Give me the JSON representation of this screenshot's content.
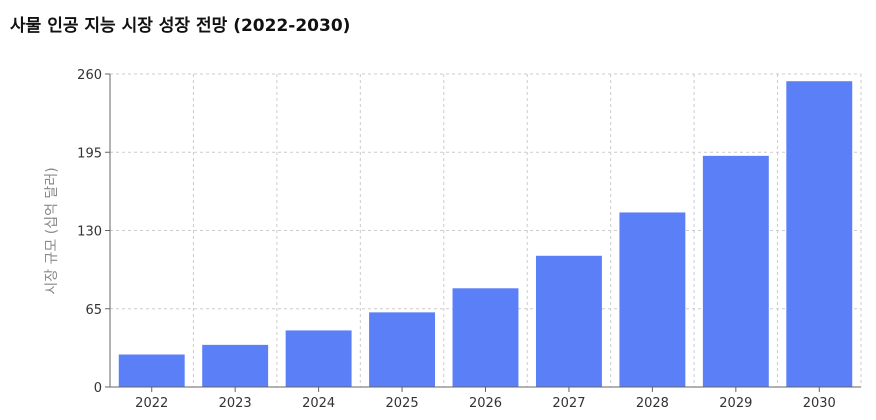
{
  "chart_data": {
    "type": "bar",
    "title": "사물 인공 지능 시장 성장 전망 (2022-2030)",
    "xlabel": "",
    "ylabel": "시장 규모 (십억 달러)",
    "categories": [
      "2022",
      "2023",
      "2024",
      "2025",
      "2026",
      "2027",
      "2028",
      "2029",
      "2030"
    ],
    "values": [
      27,
      35,
      47,
      62,
      82,
      109,
      145,
      192,
      254
    ],
    "ylim": [
      0,
      260
    ],
    "yticks": [
      0,
      65,
      130,
      195,
      260
    ],
    "grid": true,
    "bar_color": "#5b7ff7"
  }
}
